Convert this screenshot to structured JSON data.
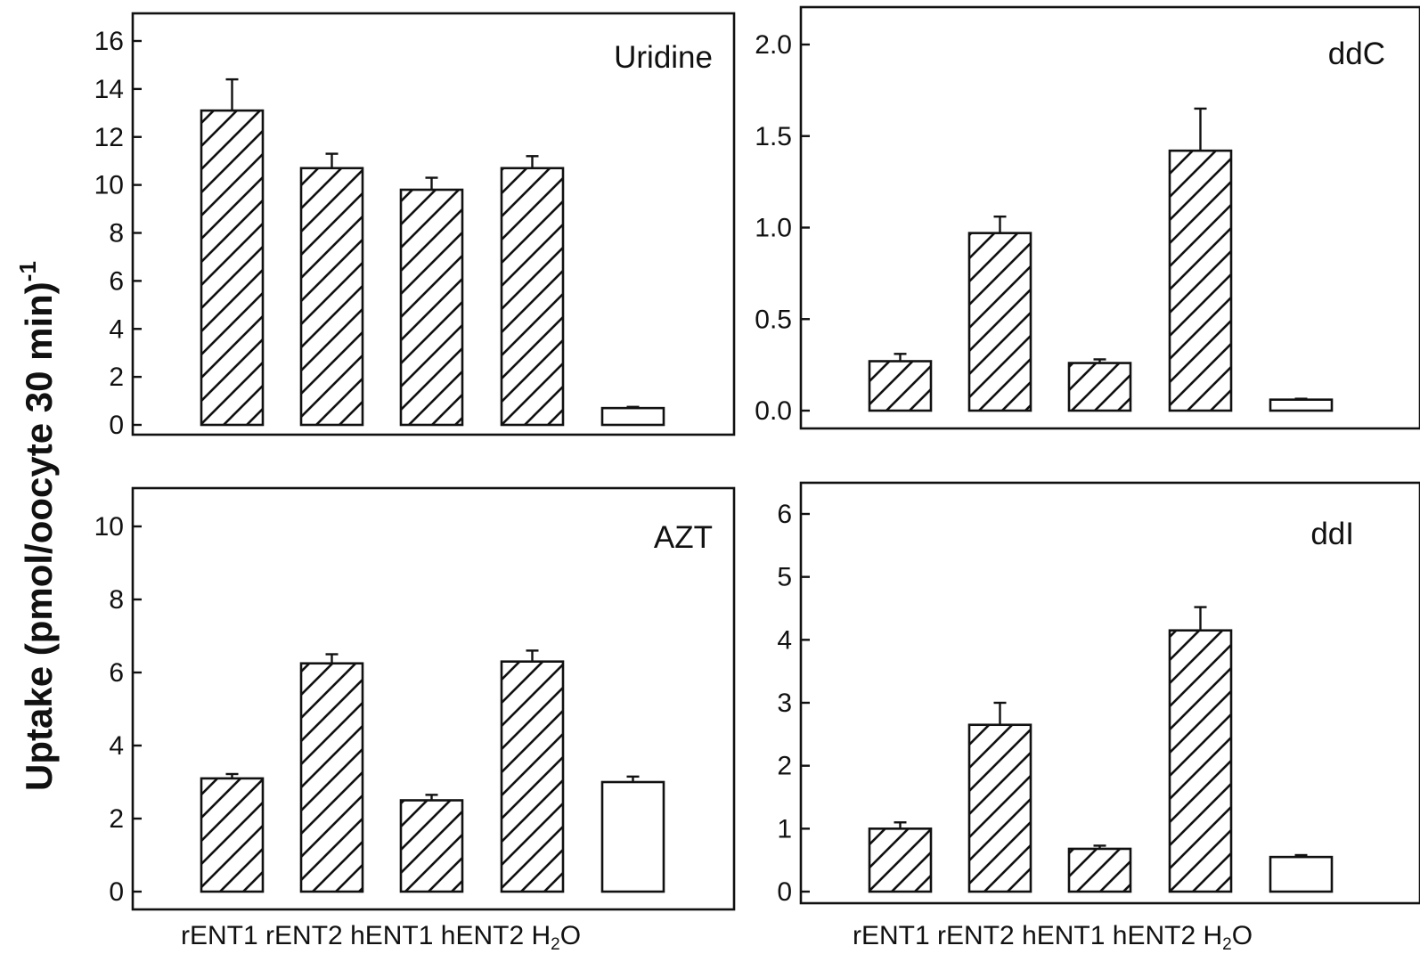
{
  "figure": {
    "ylabel": "Uptake (pmol/oocyte 30 min)",
    "ylabel_sup": "-1",
    "xcats_bottom_left": [
      "rENT1",
      "rENT2",
      "hENT1",
      "hENT2",
      "H",
      "2",
      "O"
    ],
    "xcats_bottom_right": [
      "rENT1",
      "rENT2",
      "hENT1",
      "hENT2",
      "H",
      "2",
      "O"
    ]
  },
  "chart_data": [
    {
      "type": "bar",
      "title": "Uridine",
      "categories": [
        "rENT1",
        "rENT2",
        "hENT1",
        "hENT2",
        "H2O"
      ],
      "values": [
        13.1,
        10.7,
        9.8,
        10.7,
        0.7
      ],
      "errors": [
        1.3,
        0.6,
        0.5,
        0.5,
        0.05
      ],
      "ylim": [
        0,
        16
      ],
      "yticks": [
        0,
        2,
        4,
        6,
        8,
        10,
        12,
        14,
        16
      ],
      "ytick_labels": [
        "0",
        "2",
        "4",
        "6",
        "8",
        "10",
        "12",
        "14",
        "16"
      ],
      "fill": [
        "hatched",
        "hatched",
        "hatched",
        "hatched",
        "open"
      ],
      "xlabel": "",
      "ylabel": ""
    },
    {
      "type": "bar",
      "title": "ddC",
      "categories": [
        "rENT1",
        "rENT2",
        "hENT1",
        "hENT2",
        "H2O"
      ],
      "values": [
        0.27,
        0.97,
        0.26,
        1.42,
        0.06
      ],
      "errors": [
        0.04,
        0.09,
        0.02,
        0.23,
        0.005
      ],
      "ylim": [
        0,
        2.0
      ],
      "yticks": [
        0,
        0.5,
        1.0,
        1.5,
        2.0
      ],
      "ytick_labels": [
        "0.0",
        "0.5",
        "1.0",
        "1.5",
        "2.0"
      ],
      "fill": [
        "hatched",
        "hatched",
        "hatched",
        "hatched",
        "open"
      ],
      "xlabel": "",
      "ylabel": ""
    },
    {
      "type": "bar",
      "title": "AZT",
      "categories": [
        "rENT1",
        "rENT2",
        "hENT1",
        "hENT2",
        "H2O"
      ],
      "values": [
        3.1,
        6.25,
        2.5,
        6.3,
        3.0
      ],
      "errors": [
        0.12,
        0.25,
        0.15,
        0.3,
        0.15
      ],
      "ylim": [
        0,
        10
      ],
      "yticks": [
        0,
        2,
        4,
        6,
        8,
        10
      ],
      "ytick_labels": [
        "0",
        "2",
        "4",
        "6",
        "8",
        "10"
      ],
      "fill": [
        "hatched",
        "hatched",
        "hatched",
        "hatched",
        "open"
      ],
      "xlabel": "",
      "ylabel": ""
    },
    {
      "type": "bar",
      "title": "ddI",
      "categories": [
        "rENT1",
        "rENT2",
        "hENT1",
        "hENT2",
        "H2O"
      ],
      "values": [
        1.0,
        2.65,
        0.68,
        4.15,
        0.55
      ],
      "errors": [
        0.1,
        0.35,
        0.05,
        0.37,
        0.03
      ],
      "ylim": [
        0,
        6
      ],
      "yticks": [
        0,
        1,
        2,
        3,
        4,
        5,
        6
      ],
      "ytick_labels": [
        "0",
        "1",
        "2",
        "3",
        "4",
        "5",
        "6"
      ],
      "fill": [
        "hatched",
        "hatched",
        "hatched",
        "hatched",
        "open"
      ],
      "xlabel": "",
      "ylabel": ""
    }
  ]
}
